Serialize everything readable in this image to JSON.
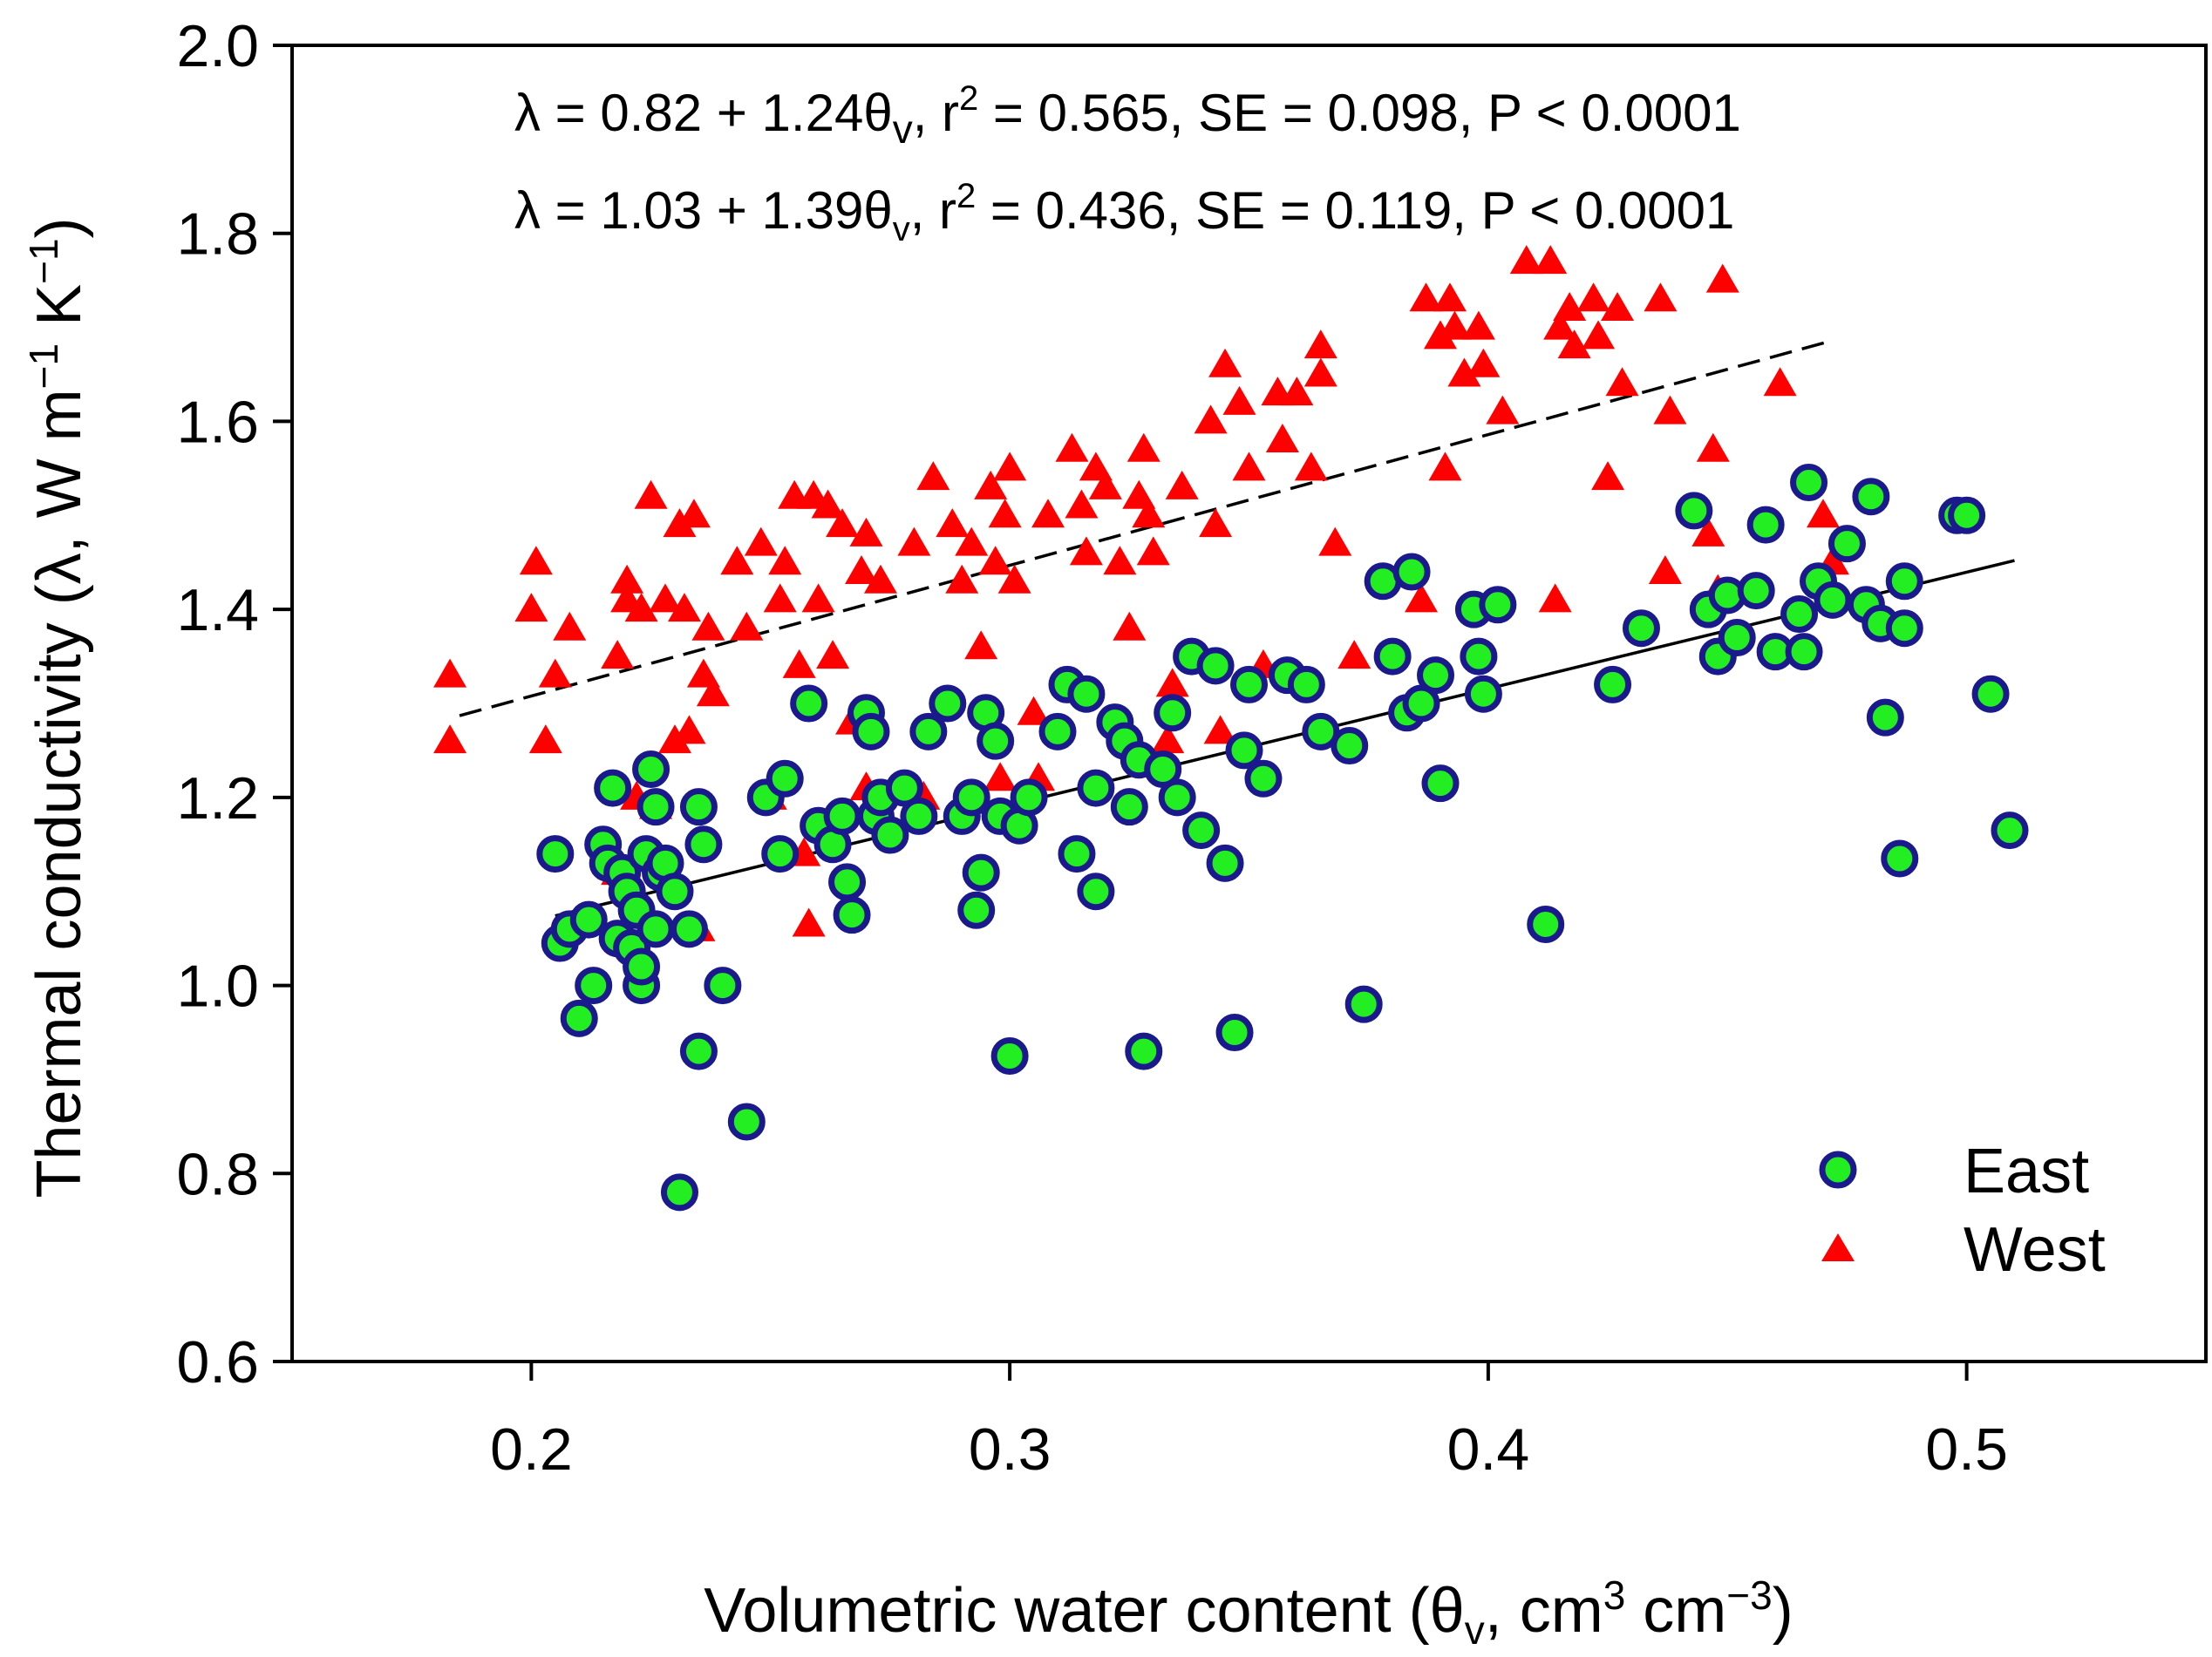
{
  "chart_data": {
    "type": "scatter",
    "xlabel": {
      "main": "Volumetric water content (",
      "theta": "θ",
      "sub": "v",
      "unit1": ", cm",
      "sup1": "3",
      "unit2": " cm",
      "sup2": "−3",
      "close": ")"
    },
    "ylabel": {
      "main": "Thermal conductivity (λ, W m",
      "sup1": "−1",
      "mid": " K",
      "sup2": "−1",
      "close": ")"
    },
    "xlim": [
      0.15,
      0.55
    ],
    "ylim": [
      0.6,
      2.0
    ],
    "xticks": [
      0.2,
      0.3,
      0.4,
      0.5
    ],
    "yticks": [
      0.6,
      0.8,
      1.0,
      1.2,
      1.4,
      1.6,
      1.8,
      2.0
    ],
    "xtick_labels": [
      "0.2",
      "0.3",
      "0.4",
      "0.5"
    ],
    "ytick_labels": [
      "0.6",
      "0.8",
      "1.0",
      "1.2",
      "1.4",
      "1.6",
      "1.8",
      "2.0"
    ],
    "annotations": [
      {
        "pre": "λ = 0.82 + 1.24θ",
        "sub": "v",
        "mid": ", r",
        "sup": "2",
        "post": " = 0.565, SE = 0.098, P < 0.0001"
      },
      {
        "pre": "λ = 1.03 + 1.39θ",
        "sub": "v",
        "mid": ", r",
        "sup": "2",
        "post": " = 0.436, SE = 0.119, P < 0.0001"
      }
    ],
    "legend": {
      "position": "bottom-right",
      "east": "East",
      "west": "West"
    },
    "colors": {
      "east_fill": "#22ee22",
      "east_edge": "#1a1a8c",
      "west_fill": "#ff0000"
    },
    "fits": [
      {
        "series": "East",
        "style": "solid",
        "x": [
          0.205,
          0.51
        ],
        "y": [
          1.074,
          1.452
        ]
      },
      {
        "series": "West",
        "style": "dashed",
        "x": [
          0.185,
          0.472
        ],
        "y": [
          1.287,
          1.686
        ]
      }
    ],
    "series": [
      {
        "name": "East",
        "marker": "circle",
        "points": [
          [
            0.205,
            1.14
          ],
          [
            0.206,
            1.045
          ],
          [
            0.208,
            1.06
          ],
          [
            0.21,
            0.965
          ],
          [
            0.212,
            1.07
          ],
          [
            0.213,
            1.0
          ],
          [
            0.215,
            1.15
          ],
          [
            0.216,
            1.13
          ],
          [
            0.217,
            1.21
          ],
          [
            0.218,
            1.05
          ],
          [
            0.219,
            1.12
          ],
          [
            0.22,
            1.1
          ],
          [
            0.221,
            1.04
          ],
          [
            0.222,
            1.08
          ],
          [
            0.223,
            1.0
          ],
          [
            0.223,
            1.02
          ],
          [
            0.224,
            1.14
          ],
          [
            0.225,
            1.23
          ],
          [
            0.226,
            1.19
          ],
          [
            0.226,
            1.06
          ],
          [
            0.227,
            1.12
          ],
          [
            0.228,
            1.13
          ],
          [
            0.23,
            1.1
          ],
          [
            0.231,
            0.78
          ],
          [
            0.233,
            1.06
          ],
          [
            0.235,
            1.19
          ],
          [
            0.235,
            0.93
          ],
          [
            0.236,
            1.15
          ],
          [
            0.24,
            1.0
          ],
          [
            0.245,
            0.855
          ],
          [
            0.249,
            1.2
          ],
          [
            0.252,
            1.14
          ],
          [
            0.253,
            1.22
          ],
          [
            0.258,
            1.3
          ],
          [
            0.26,
            1.17
          ],
          [
            0.263,
            1.15
          ],
          [
            0.265,
            1.18
          ],
          [
            0.266,
            1.11
          ],
          [
            0.267,
            1.075
          ],
          [
            0.27,
            1.29
          ],
          [
            0.271,
            1.27
          ],
          [
            0.272,
            1.18
          ],
          [
            0.273,
            1.2
          ],
          [
            0.275,
            1.16
          ],
          [
            0.278,
            1.21
          ],
          [
            0.281,
            1.18
          ],
          [
            0.283,
            1.27
          ],
          [
            0.287,
            1.3
          ],
          [
            0.29,
            1.18
          ],
          [
            0.292,
            1.2
          ],
          [
            0.293,
            1.08
          ],
          [
            0.294,
            1.12
          ],
          [
            0.295,
            1.29
          ],
          [
            0.297,
            1.26
          ],
          [
            0.298,
            1.18
          ],
          [
            0.3,
            0.925
          ],
          [
            0.302,
            1.17
          ],
          [
            0.304,
            1.2
          ],
          [
            0.31,
            1.27
          ],
          [
            0.312,
            1.32
          ],
          [
            0.314,
            1.14
          ],
          [
            0.316,
            1.31
          ],
          [
            0.318,
            1.1
          ],
          [
            0.318,
            1.21
          ],
          [
            0.322,
            1.28
          ],
          [
            0.324,
            1.26
          ],
          [
            0.325,
            1.19
          ],
          [
            0.327,
            1.24
          ],
          [
            0.328,
            0.93
          ],
          [
            0.332,
            1.23
          ],
          [
            0.334,
            1.29
          ],
          [
            0.335,
            1.2
          ],
          [
            0.338,
            1.35
          ],
          [
            0.34,
            1.165
          ],
          [
            0.343,
            1.34
          ],
          [
            0.345,
            1.13
          ],
          [
            0.347,
            0.95
          ],
          [
            0.349,
            1.25
          ],
          [
            0.35,
            1.32
          ],
          [
            0.353,
            1.22
          ],
          [
            0.358,
            1.33
          ],
          [
            0.362,
            1.32
          ],
          [
            0.365,
            1.27
          ],
          [
            0.371,
            1.255
          ],
          [
            0.374,
            0.98
          ],
          [
            0.378,
            1.43
          ],
          [
            0.38,
            1.35
          ],
          [
            0.383,
            1.29
          ],
          [
            0.384,
            1.44
          ],
          [
            0.386,
            1.3
          ],
          [
            0.389,
            1.33
          ],
          [
            0.39,
            1.215
          ],
          [
            0.397,
            1.4
          ],
          [
            0.398,
            1.35
          ],
          [
            0.399,
            1.31
          ],
          [
            0.402,
            1.405
          ],
          [
            0.412,
            1.065
          ],
          [
            0.426,
            1.32
          ],
          [
            0.432,
            1.38
          ],
          [
            0.443,
            1.505
          ],
          [
            0.446,
            1.4
          ],
          [
            0.448,
            1.35
          ],
          [
            0.45,
            1.415
          ],
          [
            0.452,
            1.37
          ],
          [
            0.456,
            1.42
          ],
          [
            0.458,
            1.49
          ],
          [
            0.46,
            1.355
          ],
          [
            0.465,
            1.395
          ],
          [
            0.466,
            1.355
          ],
          [
            0.467,
            1.535
          ],
          [
            0.469,
            1.43
          ],
          [
            0.472,
            1.41
          ],
          [
            0.475,
            1.47
          ],
          [
            0.479,
            1.405
          ],
          [
            0.48,
            1.52
          ],
          [
            0.482,
            1.385
          ],
          [
            0.483,
            1.285
          ],
          [
            0.486,
            1.135
          ],
          [
            0.487,
            1.38
          ],
          [
            0.487,
            1.43
          ],
          [
            0.498,
            1.5
          ],
          [
            0.5,
            1.5
          ],
          [
            0.505,
            1.31
          ],
          [
            0.509,
            1.165
          ]
        ]
      },
      {
        "name": "West",
        "marker": "triangle",
        "points": [
          [
            0.183,
            1.33
          ],
          [
            0.183,
            1.26
          ],
          [
            0.2,
            1.4
          ],
          [
            0.201,
            1.45
          ],
          [
            0.203,
            1.26
          ],
          [
            0.205,
            1.33
          ],
          [
            0.208,
            1.38
          ],
          [
            0.218,
            1.12
          ],
          [
            0.218,
            1.35
          ],
          [
            0.22,
            1.41
          ],
          [
            0.22,
            1.43
          ],
          [
            0.222,
            1.2
          ],
          [
            0.223,
            1.4
          ],
          [
            0.225,
            1.52
          ],
          [
            0.226,
            1.19
          ],
          [
            0.228,
            1.41
          ],
          [
            0.23,
            1.26
          ],
          [
            0.231,
            1.49
          ],
          [
            0.232,
            1.4
          ],
          [
            0.233,
            1.27
          ],
          [
            0.234,
            1.5
          ],
          [
            0.235,
            1.06
          ],
          [
            0.236,
            1.33
          ],
          [
            0.237,
            1.38
          ],
          [
            0.238,
            1.31
          ],
          [
            0.243,
            1.45
          ],
          [
            0.245,
            1.38
          ],
          [
            0.248,
            1.47
          ],
          [
            0.25,
            1.2
          ],
          [
            0.252,
            1.41
          ],
          [
            0.253,
            1.45
          ],
          [
            0.255,
            1.52
          ],
          [
            0.256,
            1.34
          ],
          [
            0.257,
            1.14
          ],
          [
            0.258,
            1.065
          ],
          [
            0.259,
            1.52
          ],
          [
            0.26,
            1.41
          ],
          [
            0.262,
            1.51
          ],
          [
            0.263,
            1.35
          ],
          [
            0.265,
            1.49
          ],
          [
            0.267,
            1.28
          ],
          [
            0.269,
            1.44
          ],
          [
            0.27,
            1.21
          ],
          [
            0.27,
            1.48
          ],
          [
            0.273,
            1.43
          ],
          [
            0.28,
            1.47
          ],
          [
            0.282,
            1.2
          ],
          [
            0.284,
            1.54
          ],
          [
            0.288,
            1.49
          ],
          [
            0.29,
            1.43
          ],
          [
            0.292,
            1.47
          ],
          [
            0.294,
            1.36
          ],
          [
            0.296,
            1.53
          ],
          [
            0.297,
            1.45
          ],
          [
            0.298,
            1.22
          ],
          [
            0.299,
            1.5
          ],
          [
            0.3,
            1.55
          ],
          [
            0.301,
            1.43
          ],
          [
            0.305,
            1.29
          ],
          [
            0.306,
            1.22
          ],
          [
            0.308,
            1.5
          ],
          [
            0.313,
            1.57
          ],
          [
            0.315,
            1.51
          ],
          [
            0.316,
            1.46
          ],
          [
            0.318,
            1.55
          ],
          [
            0.32,
            1.53
          ],
          [
            0.323,
            1.45
          ],
          [
            0.325,
            1.38
          ],
          [
            0.327,
            1.52
          ],
          [
            0.328,
            1.57
          ],
          [
            0.329,
            1.5
          ],
          [
            0.33,
            1.46
          ],
          [
            0.333,
            1.26
          ],
          [
            0.334,
            1.32
          ],
          [
            0.336,
            1.53
          ],
          [
            0.342,
            1.6
          ],
          [
            0.343,
            1.49
          ],
          [
            0.344,
            1.27
          ],
          [
            0.345,
            1.66
          ],
          [
            0.348,
            1.62
          ],
          [
            0.35,
            1.55
          ],
          [
            0.353,
            1.34
          ],
          [
            0.356,
            1.63
          ],
          [
            0.357,
            1.58
          ],
          [
            0.36,
            1.63
          ],
          [
            0.363,
            1.55
          ],
          [
            0.365,
            1.68
          ],
          [
            0.365,
            1.65
          ],
          [
            0.368,
            1.47
          ],
          [
            0.372,
            1.35
          ],
          [
            0.386,
            1.41
          ],
          [
            0.387,
            1.73
          ],
          [
            0.39,
            1.69
          ],
          [
            0.391,
            1.55
          ],
          [
            0.392,
            1.73
          ],
          [
            0.393,
            1.7
          ],
          [
            0.395,
            1.65
          ],
          [
            0.398,
            1.7
          ],
          [
            0.399,
            1.66
          ],
          [
            0.403,
            1.61
          ],
          [
            0.408,
            1.77
          ],
          [
            0.413,
            1.77
          ],
          [
            0.414,
            1.41
          ],
          [
            0.415,
            1.7
          ],
          [
            0.417,
            1.72
          ],
          [
            0.418,
            1.68
          ],
          [
            0.422,
            1.73
          ],
          [
            0.423,
            1.69
          ],
          [
            0.425,
            1.54
          ],
          [
            0.427,
            1.72
          ],
          [
            0.428,
            1.64
          ],
          [
            0.436,
            1.73
          ],
          [
            0.437,
            1.44
          ],
          [
            0.438,
            1.61
          ],
          [
            0.446,
            1.48
          ],
          [
            0.447,
            1.57
          ],
          [
            0.448,
            1.42
          ],
          [
            0.449,
            1.75
          ],
          [
            0.461,
            1.64
          ],
          [
            0.47,
            1.5
          ],
          [
            0.472,
            1.45
          ]
        ]
      }
    ]
  }
}
